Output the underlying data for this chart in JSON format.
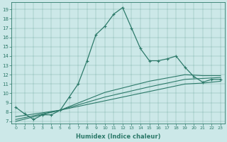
{
  "xlabel": "Humidex (Indice chaleur)",
  "background_color": "#cce8e8",
  "line_color": "#2d7a6a",
  "xlim": [
    -0.5,
    23.5
  ],
  "ylim": [
    6.8,
    19.8
  ],
  "yticks": [
    7,
    8,
    9,
    10,
    11,
    12,
    13,
    14,
    15,
    16,
    17,
    18,
    19
  ],
  "xticks": [
    0,
    1,
    2,
    3,
    4,
    5,
    6,
    7,
    8,
    9,
    10,
    11,
    12,
    13,
    14,
    15,
    16,
    17,
    18,
    19,
    20,
    21,
    22,
    23
  ],
  "series1_x": [
    0,
    1,
    2,
    3,
    4,
    5,
    6,
    7,
    8,
    9,
    10,
    11,
    12,
    13,
    14,
    15,
    16,
    17,
    18,
    19,
    20,
    21,
    22,
    23
  ],
  "series1_y": [
    8.5,
    7.8,
    7.2,
    7.7,
    7.7,
    8.2,
    9.6,
    11.0,
    13.5,
    16.3,
    17.2,
    18.5,
    19.2,
    17.0,
    14.8,
    13.5,
    13.5,
    13.7,
    14.0,
    12.8,
    11.8,
    11.2,
    11.5,
    11.5
  ],
  "series2_x": [
    0,
    5,
    10,
    15,
    19,
    21,
    23
  ],
  "series2_y": [
    7.0,
    8.2,
    9.2,
    10.2,
    11.0,
    11.1,
    11.3
  ],
  "series3_x": [
    0,
    5,
    10,
    15,
    19,
    21,
    23
  ],
  "series3_y": [
    7.2,
    8.2,
    9.6,
    10.7,
    11.5,
    11.6,
    11.7
  ],
  "series4_x": [
    0,
    5,
    10,
    15,
    19,
    21,
    23
  ],
  "series4_y": [
    7.5,
    8.2,
    10.1,
    11.3,
    12.0,
    11.9,
    11.9
  ]
}
